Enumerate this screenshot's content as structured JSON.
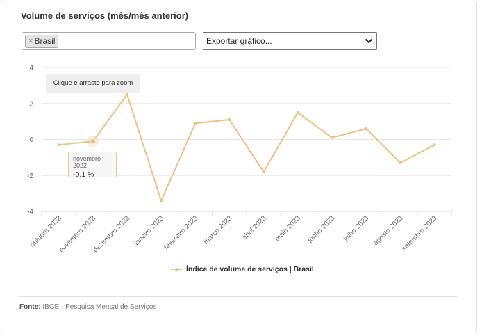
{
  "title": "Volume de serviços (mês/mês anterior)",
  "filter": {
    "chip_label": "Brasil",
    "chip_remove": "×"
  },
  "export": {
    "label": "Exportar gráfico..."
  },
  "zoom_hint": "Clique e arraste para zoom",
  "tooltip": {
    "label": "novembro 2022",
    "value": "-0,1 %"
  },
  "legend": {
    "label": "Índice de volume de serviços | Brasil"
  },
  "source": {
    "prefix": "Fonte:",
    "text": "IBGE - Pesquisa Mensal de Serviços"
  },
  "colors": {
    "series": "#f1c07d",
    "grid": "#e6e6e6",
    "axis": "#ccd6eb"
  },
  "chart_data": {
    "type": "line",
    "categories": [
      "outubro 2022",
      "novembro 2022",
      "dezembro 2022",
      "janeiro 2023",
      "fevereiro 2023",
      "março 2023",
      "abril 2023",
      "maio 2023",
      "junho 2023",
      "julho 2023",
      "agosto 2023",
      "setembro 2023"
    ],
    "series": [
      {
        "name": "Índice de volume de serviços | Brasil",
        "values": [
          -0.3,
          -0.1,
          2.5,
          -3.4,
          0.9,
          1.1,
          -1.8,
          1.5,
          0.1,
          0.6,
          -1.3,
          -0.3
        ]
      }
    ],
    "yticks": [
      4,
      2,
      0,
      -2,
      -4
    ],
    "ylim": [
      -4,
      4
    ],
    "highlighted_index": 1,
    "legend_position": "bottom-center",
    "grid": true
  }
}
